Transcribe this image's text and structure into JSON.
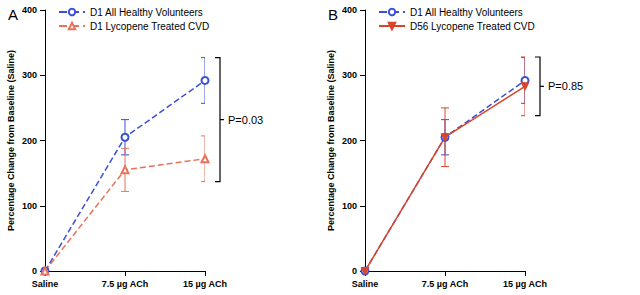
{
  "chart_data": [
    {
      "type": "line",
      "title": "A",
      "categories": [
        "Saline",
        "7.5 µg ACh",
        "15 µg ACh"
      ],
      "ylabel": "Percentage Change from Baseline (Saline)",
      "ylim": [
        0,
        400
      ],
      "yticks": [
        0,
        100,
        200,
        300,
        400
      ],
      "grid": false,
      "legend": "upper left",
      "annotation": "P=0.03",
      "series": [
        {
          "name": "D1 All Healthy Volunteers",
          "color": "#3a4fd8",
          "marker": "circle-open",
          "line_style": "dashed",
          "values": [
            0,
            205,
            292
          ],
          "errors": [
            0,
            27,
            35
          ]
        },
        {
          "name": "D1 Lycopene Treated CVD",
          "color": "#e8735a",
          "marker": "triangle-open",
          "line_style": "dashed",
          "values": [
            0,
            155,
            172
          ],
          "errors": [
            0,
            33,
            35
          ]
        }
      ]
    },
    {
      "type": "line",
      "title": "B",
      "categories": [
        "Saline",
        "7.5 µg ACh",
        "15 µg ACh"
      ],
      "ylabel": "Percentage Change from Baseline (Saline)",
      "ylim": [
        0,
        400
      ],
      "yticks": [
        0,
        100,
        200,
        300,
        400
      ],
      "grid": false,
      "legend": "upper left",
      "annotation": "P=0.85",
      "series": [
        {
          "name": "D1 All Healthy Volunteers",
          "color": "#3a4fd8",
          "marker": "circle-open",
          "line_style": "dashed",
          "values": [
            0,
            205,
            292
          ],
          "errors": [
            0,
            27,
            35
          ]
        },
        {
          "name": "D56 Lycopene Treated CVD",
          "color": "#d9452a",
          "marker": "triangle-down",
          "line_style": "solid",
          "values": [
            0,
            205,
            283
          ],
          "errors": [
            0,
            45,
            45
          ]
        }
      ]
    }
  ]
}
